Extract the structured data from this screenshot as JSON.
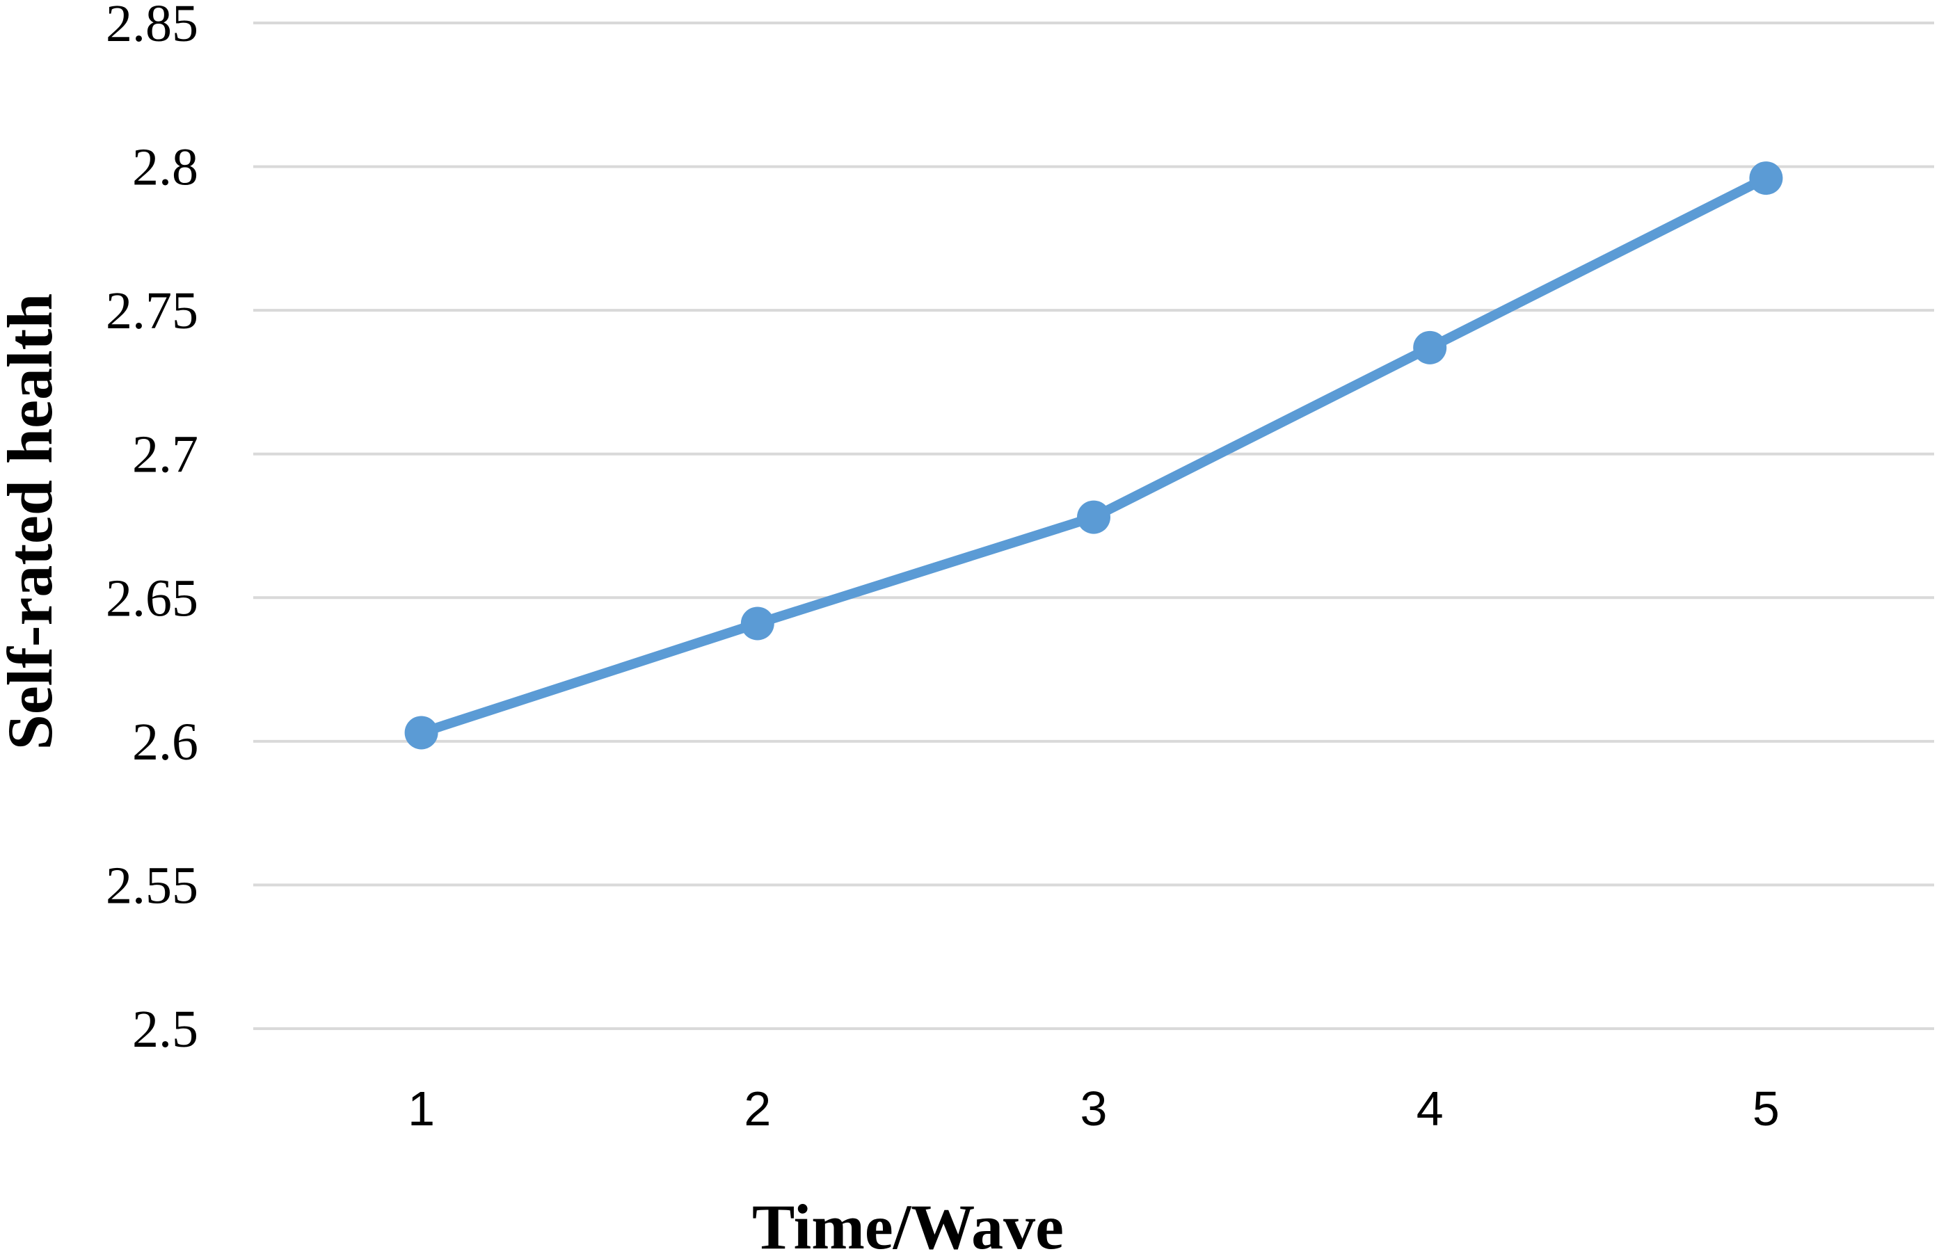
{
  "chart_data": {
    "type": "line",
    "title": "",
    "xlabel": "Time/Wave",
    "ylabel": "Self-rated health",
    "categories": [
      "1",
      "2",
      "3",
      "4",
      "5"
    ],
    "series": [
      {
        "values": [
          2.603,
          2.641,
          2.678,
          2.737,
          2.796
        ],
        "color": "#5b9bd5"
      }
    ],
    "ylim": [
      2.5,
      2.85
    ],
    "yticks": [
      "2.5",
      "2.55",
      "2.6",
      "2.65",
      "2.7",
      "2.75",
      "2.8",
      "2.85"
    ],
    "grid": true,
    "legend": "none",
    "markers": true
  }
}
